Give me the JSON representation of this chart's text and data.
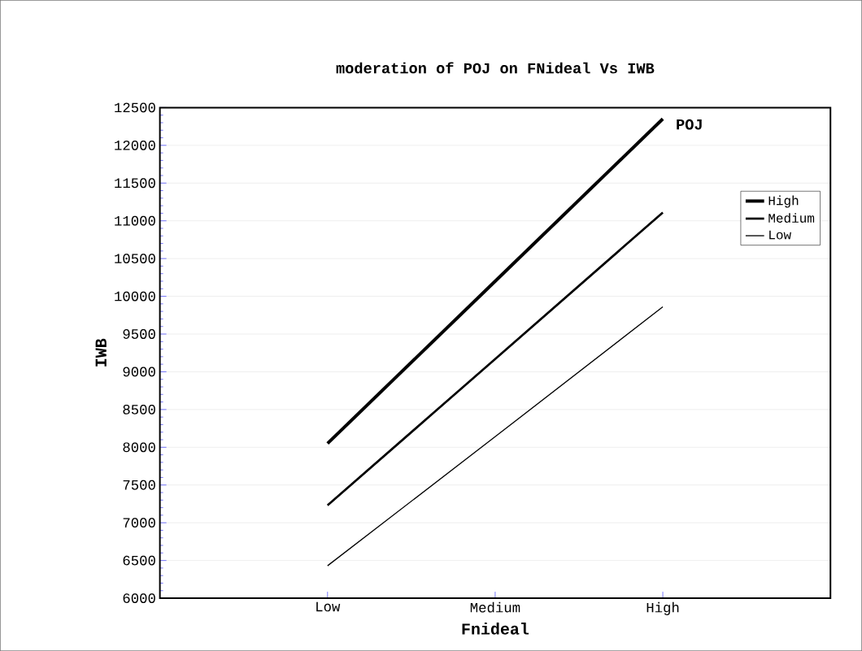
{
  "chart_data": {
    "type": "line",
    "title": "moderation of POJ on FNideal Vs IWB",
    "xlabel": "Fnideal",
    "ylabel": "IWB",
    "legend_title": "POJ",
    "categories": [
      "Low",
      "Medium",
      "High"
    ],
    "series": [
      {
        "name": "High",
        "color": "#000000",
        "values": [
          8050,
          10200,
          12350
        ]
      },
      {
        "name": "Medium",
        "color": "#000000",
        "values": [
          7230,
          9170,
          11110
        ]
      },
      {
        "name": "Low",
        "color": "#000000",
        "values": [
          6430,
          8140,
          9860
        ]
      }
    ],
    "ylim": [
      6000,
      12500
    ],
    "yticks": [
      6000,
      6500,
      7000,
      7500,
      8000,
      8500,
      9000,
      9500,
      10000,
      10500,
      11000,
      11500,
      12000,
      12500
    ],
    "grid": "y",
    "legend": "top right",
    "marker": "none",
    "line_style": "solid"
  }
}
